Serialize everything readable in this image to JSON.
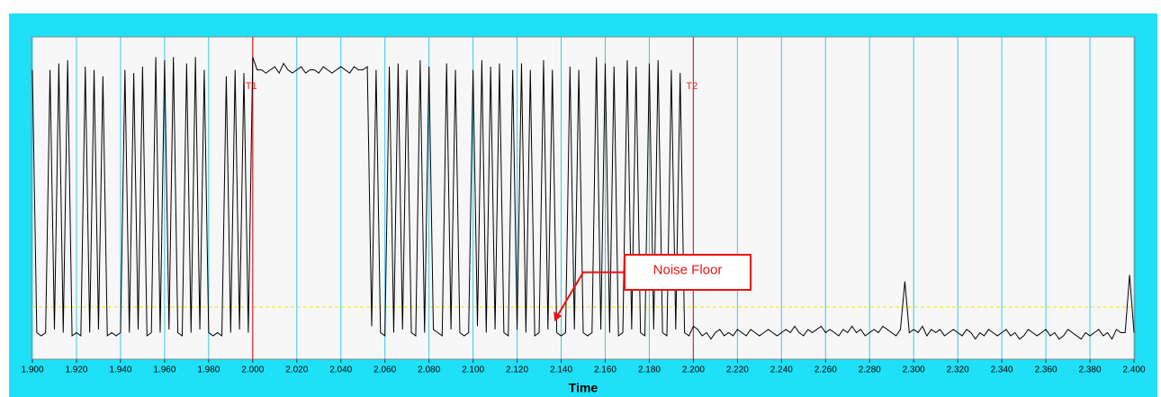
{
  "chart_data": {
    "type": "line",
    "x_label": "Time",
    "color": "#000000",
    "grid_color": "#38c9ea",
    "xlim": [
      1.9,
      2.4
    ],
    "ylim": [
      0,
      100
    ],
    "xticks": [
      {
        "value": 1.9,
        "label": "1.900"
      },
      {
        "value": 1.92,
        "label": "1.920"
      },
      {
        "value": 1.94,
        "label": "1.940"
      },
      {
        "value": 1.96,
        "label": "1.960"
      },
      {
        "value": 1.98,
        "label": "1.980"
      },
      {
        "value": 2.0,
        "label": "2.000"
      },
      {
        "value": 2.02,
        "label": "2.020"
      },
      {
        "value": 2.04,
        "label": "2.040"
      },
      {
        "value": 2.06,
        "label": "2.060"
      },
      {
        "value": 2.08,
        "label": "2.080"
      },
      {
        "value": 2.1,
        "label": "2.100"
      },
      {
        "value": 2.12,
        "label": "2.120"
      },
      {
        "value": 2.14,
        "label": "2.140"
      },
      {
        "value": 2.16,
        "label": "2.160"
      },
      {
        "value": 2.18,
        "label": "2.180"
      },
      {
        "value": 2.2,
        "label": "2.200"
      },
      {
        "value": 2.22,
        "label": "2.220"
      },
      {
        "value": 2.24,
        "label": "2.240"
      },
      {
        "value": 2.26,
        "label": "2.260"
      },
      {
        "value": 2.28,
        "label": "2.280"
      },
      {
        "value": 2.3,
        "label": "2.300"
      },
      {
        "value": 2.32,
        "label": "2.320"
      },
      {
        "value": 2.34,
        "label": "2.340"
      },
      {
        "value": 2.36,
        "label": "2.360"
      },
      {
        "value": 2.38,
        "label": "2.380"
      },
      {
        "value": 2.4,
        "label": "2.400"
      }
    ],
    "cursors": [
      {
        "label": "T1",
        "value": 2.0,
        "color": "#ff2020"
      },
      {
        "label": "T2",
        "value": 2.2,
        "color": "#ff2020"
      }
    ],
    "threshold": {
      "value": 16,
      "color": "#e8e800"
    },
    "annotation": {
      "text": "Noise Floor",
      "x": 2.137,
      "y": 11.5,
      "color": "#ee1111"
    },
    "x": [
      1.9,
      1.902,
      1.904,
      1.906,
      1.908,
      1.91,
      1.912,
      1.914,
      1.916,
      1.918,
      1.92,
      1.922,
      1.924,
      1.926,
      1.928,
      1.93,
      1.932,
      1.934,
      1.936,
      1.938,
      1.94,
      1.942,
      1.944,
      1.946,
      1.948,
      1.95,
      1.952,
      1.954,
      1.956,
      1.958,
      1.96,
      1.962,
      1.964,
      1.966,
      1.968,
      1.97,
      1.972,
      1.974,
      1.976,
      1.978,
      1.98,
      1.982,
      1.984,
      1.986,
      1.988,
      1.99,
      1.992,
      1.994,
      1.996,
      1.998,
      2.0,
      2.002,
      2.004,
      2.006,
      2.008,
      2.01,
      2.012,
      2.014,
      2.016,
      2.018,
      2.02,
      2.022,
      2.024,
      2.026,
      2.028,
      2.03,
      2.032,
      2.034,
      2.036,
      2.038,
      2.04,
      2.042,
      2.044,
      2.046,
      2.048,
      2.05,
      2.052,
      2.054,
      2.056,
      2.058,
      2.06,
      2.062,
      2.064,
      2.066,
      2.068,
      2.07,
      2.072,
      2.074,
      2.076,
      2.078,
      2.08,
      2.082,
      2.084,
      2.086,
      2.088,
      2.09,
      2.092,
      2.094,
      2.096,
      2.098,
      2.1,
      2.102,
      2.104,
      2.106,
      2.108,
      2.11,
      2.112,
      2.114,
      2.116,
      2.118,
      2.12,
      2.122,
      2.124,
      2.126,
      2.128,
      2.13,
      2.132,
      2.134,
      2.136,
      2.138,
      2.14,
      2.142,
      2.144,
      2.146,
      2.148,
      2.15,
      2.152,
      2.154,
      2.156,
      2.158,
      2.16,
      2.162,
      2.164,
      2.166,
      2.168,
      2.17,
      2.172,
      2.174,
      2.176,
      2.178,
      2.18,
      2.182,
      2.184,
      2.186,
      2.188,
      2.19,
      2.192,
      2.194,
      2.196,
      2.198,
      2.2,
      2.202,
      2.204,
      2.206,
      2.208,
      2.21,
      2.212,
      2.214,
      2.216,
      2.218,
      2.22,
      2.222,
      2.224,
      2.226,
      2.228,
      2.23,
      2.232,
      2.234,
      2.236,
      2.238,
      2.24,
      2.242,
      2.244,
      2.246,
      2.248,
      2.25,
      2.252,
      2.254,
      2.256,
      2.258,
      2.26,
      2.262,
      2.264,
      2.266,
      2.268,
      2.27,
      2.272,
      2.274,
      2.276,
      2.278,
      2.28,
      2.282,
      2.284,
      2.286,
      2.288,
      2.29,
      2.292,
      2.294,
      2.296,
      2.298,
      2.3,
      2.302,
      2.304,
      2.306,
      2.308,
      2.31,
      2.312,
      2.314,
      2.316,
      2.318,
      2.32,
      2.322,
      2.324,
      2.326,
      2.328,
      2.33,
      2.332,
      2.334,
      2.336,
      2.338,
      2.34,
      2.342,
      2.344,
      2.346,
      2.348,
      2.35,
      2.352,
      2.354,
      2.356,
      2.358,
      2.36,
      2.362,
      2.364,
      2.366,
      2.368,
      2.37,
      2.372,
      2.374,
      2.376,
      2.378,
      2.38,
      2.382,
      2.384,
      2.386,
      2.388,
      2.39,
      2.392,
      2.394,
      2.396,
      2.398,
      2.4
    ],
    "values": [
      90,
      8,
      7,
      8,
      90,
      9,
      92,
      8,
      93,
      7,
      8,
      7,
      91,
      8,
      90,
      9,
      88,
      7,
      8,
      7,
      8,
      90,
      8,
      89,
      9,
      91,
      7,
      8,
      94,
      8,
      93,
      9,
      94,
      8,
      7,
      92,
      8,
      94,
      9,
      90,
      8,
      7,
      8,
      7,
      88,
      8,
      90,
      9,
      89,
      8,
      94,
      90,
      90,
      89,
      90,
      91,
      89,
      92,
      90,
      89,
      90,
      91,
      89,
      90,
      90,
      89,
      91,
      90,
      89,
      90,
      91,
      90,
      89,
      91,
      90,
      90,
      91,
      10,
      90,
      8,
      7,
      91,
      8,
      92,
      9,
      90,
      8,
      7,
      93,
      8,
      91,
      9,
      8,
      7,
      92,
      9,
      90,
      8,
      7,
      8,
      90,
      10,
      93,
      8,
      91,
      9,
      92,
      8,
      7,
      90,
      9,
      92,
      8,
      90,
      7,
      8,
      93,
      9,
      90,
      8,
      7,
      8,
      91,
      9,
      90,
      8,
      7,
      8,
      94,
      9,
      92,
      8,
      91,
      7,
      8,
      93,
      9,
      91,
      8,
      7,
      92,
      9,
      93,
      8,
      7,
      90,
      9,
      89,
      8,
      7,
      10,
      9,
      7,
      8,
      6,
      8,
      9,
      7,
      8,
      7,
      9,
      8,
      7,
      9,
      8,
      7,
      8,
      9,
      8,
      7,
      8,
      9,
      8,
      10,
      8,
      7,
      9,
      8,
      9,
      10,
      8,
      9,
      8,
      7,
      9,
      8,
      10,
      8,
      9,
      7,
      8,
      9,
      8,
      10,
      9,
      8,
      7,
      9,
      24,
      8,
      9,
      8,
      10,
      7,
      9,
      8,
      9,
      7,
      8,
      9,
      8,
      7,
      9,
      8,
      6,
      8,
      7,
      9,
      8,
      7,
      8,
      9,
      7,
      8,
      6,
      7,
      9,
      8,
      7,
      8,
      9,
      7,
      8,
      6,
      7,
      9,
      8,
      7,
      6,
      8,
      7,
      8,
      9,
      7,
      8,
      6,
      9,
      8,
      8,
      26,
      8
    ]
  }
}
